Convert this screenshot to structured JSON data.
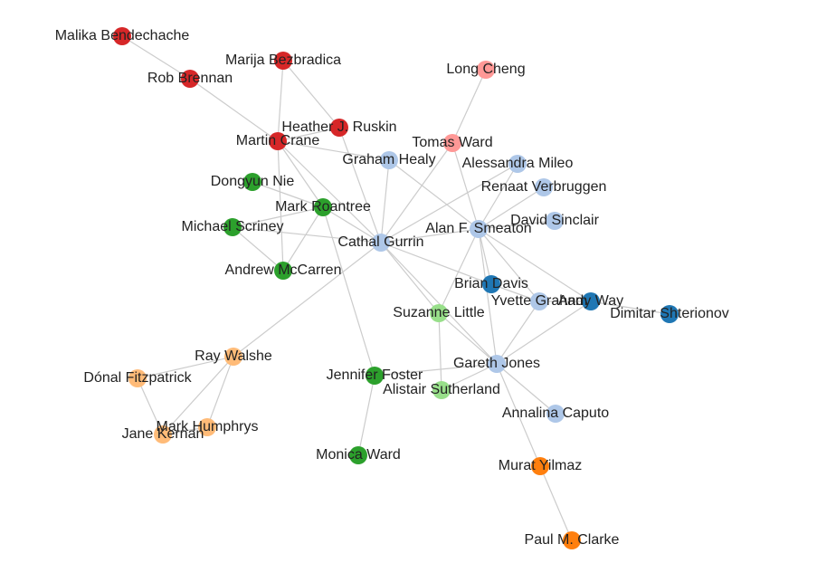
{
  "colors": {
    "background": "#ffffff",
    "edge": "#cccccc",
    "label": "#222222",
    "groups": {
      "red": "#d62728",
      "pink": "#ff9896",
      "lightblue": "#aec7e8",
      "blue": "#1f77b4",
      "green": "#2ca02c",
      "lightgreen": "#98df8a",
      "lightorange": "#ffbb78",
      "orange": "#ff7f0e"
    }
  },
  "nodes": [
    {
      "id": "malika",
      "label": "Malika Bendechache",
      "group": "red"
    },
    {
      "id": "rob",
      "label": "Rob Brennan",
      "group": "red"
    },
    {
      "id": "marija",
      "label": "Marija Bezbradica",
      "group": "red"
    },
    {
      "id": "heather",
      "label": "Heather J. Ruskin",
      "group": "red"
    },
    {
      "id": "martin",
      "label": "Martin Crane",
      "group": "red"
    },
    {
      "id": "longcheng",
      "label": "Long Cheng",
      "group": "pink"
    },
    {
      "id": "tomas",
      "label": "Tomas Ward",
      "group": "pink"
    },
    {
      "id": "graham",
      "label": "Graham Healy",
      "group": "lightblue"
    },
    {
      "id": "alessandra",
      "label": "Alessandra Mileo",
      "group": "lightblue"
    },
    {
      "id": "renaat",
      "label": "Renaat Verbruggen",
      "group": "lightblue"
    },
    {
      "id": "david",
      "label": "David Sinclair",
      "group": "lightblue"
    },
    {
      "id": "alan",
      "label": "Alan F. Smeaton",
      "group": "lightblue"
    },
    {
      "id": "cathal",
      "label": "Cathal Gurrin",
      "group": "lightblue"
    },
    {
      "id": "yvette",
      "label": "Yvette Graham",
      "group": "lightblue"
    },
    {
      "id": "gareth",
      "label": "Gareth Jones",
      "group": "lightblue"
    },
    {
      "id": "annalina",
      "label": "Annalina Caputo",
      "group": "lightblue"
    },
    {
      "id": "brian",
      "label": "Brian Davis",
      "group": "blue"
    },
    {
      "id": "andy",
      "label": "Andy Way",
      "group": "blue"
    },
    {
      "id": "dimitar",
      "label": "Dimitar Shterionov",
      "group": "blue"
    },
    {
      "id": "dongyun",
      "label": "Dongyun Nie",
      "group": "green"
    },
    {
      "id": "markr",
      "label": "Mark Roantree",
      "group": "green"
    },
    {
      "id": "michael",
      "label": "Michael Scriney",
      "group": "green"
    },
    {
      "id": "andrew",
      "label": "Andrew McCarren",
      "group": "green"
    },
    {
      "id": "jennifer",
      "label": "Jennifer Foster",
      "group": "green"
    },
    {
      "id": "monica",
      "label": "Monica Ward",
      "group": "green"
    },
    {
      "id": "suzanne",
      "label": "Suzanne Little",
      "group": "lightgreen"
    },
    {
      "id": "alistair",
      "label": "Alistair Sutherland",
      "group": "lightgreen"
    },
    {
      "id": "ray",
      "label": "Ray Walshe",
      "group": "lightorange"
    },
    {
      "id": "donal",
      "label": "Dónal Fitzpatrick",
      "group": "lightorange"
    },
    {
      "id": "jane",
      "label": "Jane Kernan",
      "group": "lightorange"
    },
    {
      "id": "markh",
      "label": "Mark Humphrys",
      "group": "lightorange"
    },
    {
      "id": "murat",
      "label": "Murat Yilmaz",
      "group": "orange"
    },
    {
      "id": "paul",
      "label": "Paul M. Clarke",
      "group": "orange"
    }
  ],
  "edges": [
    [
      "malika",
      "rob"
    ],
    [
      "rob",
      "martin"
    ],
    [
      "marija",
      "heather"
    ],
    [
      "marija",
      "martin"
    ],
    [
      "heather",
      "martin"
    ],
    [
      "heather",
      "cathal"
    ],
    [
      "martin",
      "graham"
    ],
    [
      "martin",
      "cathal"
    ],
    [
      "martin",
      "markr"
    ],
    [
      "martin",
      "andrew"
    ],
    [
      "longcheng",
      "tomas"
    ],
    [
      "tomas",
      "cathal"
    ],
    [
      "tomas",
      "alan"
    ],
    [
      "graham",
      "cathal"
    ],
    [
      "graham",
      "alan"
    ],
    [
      "alessandra",
      "alan"
    ],
    [
      "alessandra",
      "cathal"
    ],
    [
      "renaat",
      "alan"
    ],
    [
      "david",
      "alan"
    ],
    [
      "alan",
      "cathal"
    ],
    [
      "alan",
      "brian"
    ],
    [
      "alan",
      "yvette"
    ],
    [
      "alan",
      "andy"
    ],
    [
      "alan",
      "gareth"
    ],
    [
      "alan",
      "suzanne"
    ],
    [
      "cathal",
      "suzanne"
    ],
    [
      "cathal",
      "brian"
    ],
    [
      "cathal",
      "gareth"
    ],
    [
      "cathal",
      "markr"
    ],
    [
      "cathal",
      "michael"
    ],
    [
      "cathal",
      "ray"
    ],
    [
      "markr",
      "michael"
    ],
    [
      "markr",
      "andrew"
    ],
    [
      "markr",
      "dongyun"
    ],
    [
      "michael",
      "andrew"
    ],
    [
      "markr",
      "jennifer"
    ],
    [
      "jennifer",
      "monica"
    ],
    [
      "jennifer",
      "gareth"
    ],
    [
      "brian",
      "yvette"
    ],
    [
      "yvette",
      "andy"
    ],
    [
      "yvette",
      "gareth"
    ],
    [
      "andy",
      "gareth"
    ],
    [
      "andy",
      "dimitar"
    ],
    [
      "gareth",
      "suzanne"
    ],
    [
      "gareth",
      "alistair"
    ],
    [
      "gareth",
      "annalina"
    ],
    [
      "gareth",
      "murat"
    ],
    [
      "suzanne",
      "alistair"
    ],
    [
      "murat",
      "paul"
    ],
    [
      "ray",
      "donal"
    ],
    [
      "ray",
      "jane"
    ],
    [
      "ray",
      "markh"
    ],
    [
      "donal",
      "jane"
    ],
    [
      "jane",
      "markh"
    ]
  ]
}
